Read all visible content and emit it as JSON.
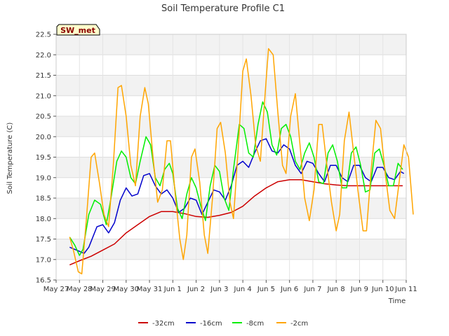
{
  "chart_data": {
    "type": "line",
    "title": "Soil Temperature Profile C1",
    "xlabel": "Time",
    "ylabel": "Soil Temperature (C)",
    "badge": "SW_met",
    "ylim": [
      16.5,
      22.5
    ],
    "xlim": [
      0,
      15
    ],
    "yticks": [
      "16.5",
      "17.0",
      "17.5",
      "18.0",
      "18.5",
      "19.0",
      "19.5",
      "20.0",
      "20.5",
      "21.0",
      "21.5",
      "22.0",
      "22.5"
    ],
    "xticks": [
      {
        "label": "May 27",
        "day": 0
      },
      {
        "label": "May 28",
        "day": 1
      },
      {
        "label": "May 29",
        "day": 2
      },
      {
        "label": "May 30",
        "day": 3
      },
      {
        "label": "May 31",
        "day": 4
      },
      {
        "label": "Jun 1",
        "day": 5
      },
      {
        "label": "Jun 2",
        "day": 6
      },
      {
        "label": "Jun 3",
        "day": 7
      },
      {
        "label": "Jun 4",
        "day": 8
      },
      {
        "label": "Jun 5",
        "day": 9
      },
      {
        "label": "Jun 6",
        "day": 10
      },
      {
        "label": "Jun 7",
        "day": 11
      },
      {
        "label": "Jun 8",
        "day": 12
      },
      {
        "label": "Jun 9",
        "day": 13
      },
      {
        "label": "Jun 10",
        "day": 14
      },
      {
        "label": "Jun 11",
        "day": 15
      }
    ],
    "grid": true,
    "legend_position": "bottom",
    "series": [
      {
        "name": "-32cm",
        "color": "#cc0000",
        "points": [
          [
            0.58,
            16.87
          ],
          [
            1.0,
            16.97
          ],
          [
            1.5,
            17.08
          ],
          [
            2.0,
            17.23
          ],
          [
            2.5,
            17.38
          ],
          [
            3.0,
            17.65
          ],
          [
            3.5,
            17.85
          ],
          [
            4.0,
            18.05
          ],
          [
            4.5,
            18.17
          ],
          [
            5.0,
            18.17
          ],
          [
            5.5,
            18.12
          ],
          [
            6.0,
            18.05
          ],
          [
            6.5,
            18.03
          ],
          [
            7.0,
            18.08
          ],
          [
            7.5,
            18.15
          ],
          [
            8.0,
            18.3
          ],
          [
            8.5,
            18.55
          ],
          [
            9.0,
            18.75
          ],
          [
            9.5,
            18.9
          ],
          [
            10.0,
            18.95
          ],
          [
            10.5,
            18.95
          ],
          [
            11.0,
            18.9
          ],
          [
            11.5,
            18.85
          ],
          [
            12.0,
            18.82
          ],
          [
            12.5,
            18.8
          ],
          [
            13.0,
            18.8
          ],
          [
            13.5,
            18.8
          ],
          [
            14.0,
            18.8
          ],
          [
            14.5,
            18.8
          ],
          [
            14.85,
            18.8
          ]
        ]
      },
      {
        "name": "-16cm",
        "color": "#0000cc",
        "points": [
          [
            0.58,
            17.3
          ],
          [
            1.0,
            17.2
          ],
          [
            1.2,
            17.15
          ],
          [
            1.4,
            17.3
          ],
          [
            1.75,
            17.8
          ],
          [
            2.0,
            17.85
          ],
          [
            2.25,
            17.65
          ],
          [
            2.5,
            17.9
          ],
          [
            2.75,
            18.45
          ],
          [
            3.0,
            18.75
          ],
          [
            3.25,
            18.55
          ],
          [
            3.5,
            18.6
          ],
          [
            3.75,
            19.05
          ],
          [
            4.0,
            19.1
          ],
          [
            4.25,
            18.8
          ],
          [
            4.5,
            18.6
          ],
          [
            4.75,
            18.7
          ],
          [
            5.0,
            18.5
          ],
          [
            5.25,
            18.15
          ],
          [
            5.5,
            18.25
          ],
          [
            5.75,
            18.5
          ],
          [
            6.0,
            18.45
          ],
          [
            6.25,
            18.1
          ],
          [
            6.5,
            18.4
          ],
          [
            6.75,
            18.7
          ],
          [
            7.0,
            18.65
          ],
          [
            7.25,
            18.45
          ],
          [
            7.5,
            18.8
          ],
          [
            7.75,
            19.3
          ],
          [
            8.0,
            19.4
          ],
          [
            8.25,
            19.25
          ],
          [
            8.5,
            19.6
          ],
          [
            8.75,
            19.9
          ],
          [
            9.0,
            19.95
          ],
          [
            9.25,
            19.65
          ],
          [
            9.5,
            19.6
          ],
          [
            9.75,
            19.8
          ],
          [
            10.0,
            19.7
          ],
          [
            10.25,
            19.3
          ],
          [
            10.5,
            19.1
          ],
          [
            10.75,
            19.4
          ],
          [
            11.0,
            19.35
          ],
          [
            11.25,
            19.1
          ],
          [
            11.5,
            18.9
          ],
          [
            11.75,
            19.3
          ],
          [
            12.0,
            19.3
          ],
          [
            12.25,
            19.0
          ],
          [
            12.5,
            18.9
          ],
          [
            12.75,
            19.3
          ],
          [
            13.0,
            19.3
          ],
          [
            13.25,
            19.0
          ],
          [
            13.5,
            18.9
          ],
          [
            13.75,
            19.25
          ],
          [
            14.0,
            19.25
          ],
          [
            14.25,
            19.0
          ],
          [
            14.5,
            18.95
          ],
          [
            14.75,
            19.15
          ],
          [
            14.9,
            19.1
          ]
        ]
      },
      {
        "name": "-8cm",
        "color": "#00ee00",
        "points": [
          [
            0.58,
            17.55
          ],
          [
            0.8,
            17.35
          ],
          [
            1.0,
            17.1
          ],
          [
            1.15,
            17.25
          ],
          [
            1.4,
            18.1
          ],
          [
            1.65,
            18.45
          ],
          [
            1.9,
            18.35
          ],
          [
            2.15,
            17.85
          ],
          [
            2.35,
            18.5
          ],
          [
            2.6,
            19.4
          ],
          [
            2.8,
            19.65
          ],
          [
            3.0,
            19.5
          ],
          [
            3.2,
            19.0
          ],
          [
            3.4,
            18.85
          ],
          [
            3.6,
            19.4
          ],
          [
            3.85,
            20.0
          ],
          [
            4.05,
            19.8
          ],
          [
            4.25,
            19.0
          ],
          [
            4.45,
            18.8
          ],
          [
            4.65,
            19.2
          ],
          [
            4.85,
            19.35
          ],
          [
            5.0,
            19.1
          ],
          [
            5.2,
            18.25
          ],
          [
            5.4,
            18.0
          ],
          [
            5.6,
            18.6
          ],
          [
            5.8,
            19.0
          ],
          [
            6.0,
            18.75
          ],
          [
            6.2,
            18.3
          ],
          [
            6.4,
            17.95
          ],
          [
            6.6,
            18.8
          ],
          [
            6.8,
            19.3
          ],
          [
            7.0,
            19.15
          ],
          [
            7.2,
            18.5
          ],
          [
            7.4,
            18.2
          ],
          [
            7.6,
            19.2
          ],
          [
            7.85,
            20.3
          ],
          [
            8.05,
            20.2
          ],
          [
            8.25,
            19.6
          ],
          [
            8.45,
            19.5
          ],
          [
            8.65,
            20.3
          ],
          [
            8.85,
            20.85
          ],
          [
            9.05,
            20.6
          ],
          [
            9.25,
            19.8
          ],
          [
            9.45,
            19.55
          ],
          [
            9.65,
            20.2
          ],
          [
            9.85,
            20.3
          ],
          [
            10.05,
            20.0
          ],
          [
            10.25,
            19.4
          ],
          [
            10.45,
            19.2
          ],
          [
            10.65,
            19.6
          ],
          [
            10.85,
            19.85
          ],
          [
            11.05,
            19.5
          ],
          [
            11.25,
            18.9
          ],
          [
            11.45,
            18.85
          ],
          [
            11.65,
            19.6
          ],
          [
            11.85,
            19.8
          ],
          [
            12.05,
            19.4
          ],
          [
            12.25,
            18.75
          ],
          [
            12.45,
            18.75
          ],
          [
            12.65,
            19.6
          ],
          [
            12.85,
            19.75
          ],
          [
            13.05,
            19.3
          ],
          [
            13.25,
            18.65
          ],
          [
            13.45,
            18.7
          ],
          [
            13.65,
            19.6
          ],
          [
            13.85,
            19.7
          ],
          [
            14.05,
            19.3
          ],
          [
            14.25,
            18.8
          ],
          [
            14.45,
            18.8
          ],
          [
            14.65,
            19.35
          ],
          [
            14.85,
            19.2
          ]
        ]
      },
      {
        "name": "-2cm",
        "color": "#ffa500",
        "points": [
          [
            0.58,
            17.55
          ],
          [
            0.75,
            17.2
          ],
          [
            0.95,
            16.7
          ],
          [
            1.1,
            16.65
          ],
          [
            1.3,
            18.0
          ],
          [
            1.5,
            19.5
          ],
          [
            1.65,
            19.6
          ],
          [
            1.85,
            18.9
          ],
          [
            2.05,
            18.1
          ],
          [
            2.25,
            17.8
          ],
          [
            2.45,
            19.3
          ],
          [
            2.65,
            21.2
          ],
          [
            2.8,
            21.25
          ],
          [
            3.0,
            20.5
          ],
          [
            3.2,
            19.3
          ],
          [
            3.4,
            18.8
          ],
          [
            3.6,
            20.5
          ],
          [
            3.8,
            21.2
          ],
          [
            3.95,
            20.8
          ],
          [
            4.15,
            19.5
          ],
          [
            4.35,
            18.4
          ],
          [
            4.55,
            18.7
          ],
          [
            4.75,
            19.9
          ],
          [
            4.9,
            19.9
          ],
          [
            5.1,
            18.6
          ],
          [
            5.3,
            17.5
          ],
          [
            5.45,
            17.0
          ],
          [
            5.6,
            17.6
          ],
          [
            5.8,
            19.5
          ],
          [
            5.95,
            19.7
          ],
          [
            6.15,
            18.9
          ],
          [
            6.35,
            17.6
          ],
          [
            6.5,
            17.15
          ],
          [
            6.7,
            18.5
          ],
          [
            6.9,
            20.2
          ],
          [
            7.05,
            20.35
          ],
          [
            7.25,
            19.6
          ],
          [
            7.45,
            18.4
          ],
          [
            7.6,
            18.0
          ],
          [
            7.8,
            19.7
          ],
          [
            8.0,
            21.6
          ],
          [
            8.15,
            21.9
          ],
          [
            8.35,
            21.0
          ],
          [
            8.55,
            19.8
          ],
          [
            8.75,
            19.4
          ],
          [
            8.95,
            21.0
          ],
          [
            9.1,
            22.15
          ],
          [
            9.3,
            22.0
          ],
          [
            9.5,
            20.6
          ],
          [
            9.7,
            19.3
          ],
          [
            9.85,
            19.1
          ],
          [
            10.05,
            20.5
          ],
          [
            10.25,
            21.05
          ],
          [
            10.45,
            19.8
          ],
          [
            10.65,
            18.5
          ],
          [
            10.85,
            17.95
          ],
          [
            11.05,
            18.7
          ],
          [
            11.25,
            20.3
          ],
          [
            11.4,
            20.3
          ],
          [
            11.6,
            19.3
          ],
          [
            11.8,
            18.4
          ],
          [
            12.0,
            17.7
          ],
          [
            12.15,
            18.1
          ],
          [
            12.35,
            19.9
          ],
          [
            12.55,
            20.6
          ],
          [
            12.75,
            19.6
          ],
          [
            12.95,
            18.6
          ],
          [
            13.15,
            17.7
          ],
          [
            13.3,
            17.7
          ],
          [
            13.5,
            19.2
          ],
          [
            13.7,
            20.4
          ],
          [
            13.9,
            20.2
          ],
          [
            14.1,
            19.1
          ],
          [
            14.3,
            18.2
          ],
          [
            14.5,
            18.0
          ],
          [
            14.7,
            18.9
          ],
          [
            14.9,
            19.8
          ],
          [
            15.1,
            19.5
          ],
          [
            15.3,
            18.1
          ]
        ]
      }
    ]
  }
}
